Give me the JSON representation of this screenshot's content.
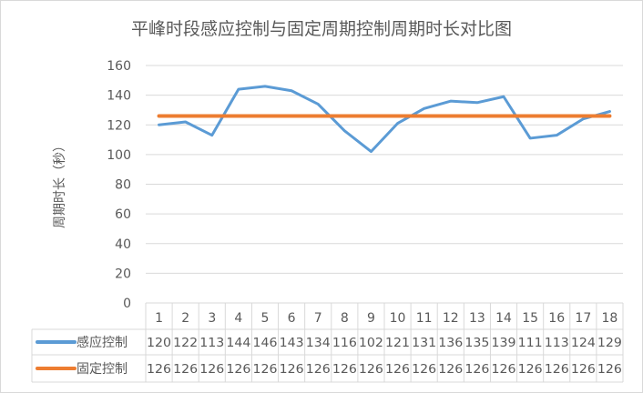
{
  "chart_data": {
    "type": "line",
    "title": "平峰时段感应控制与固定周期控制周期时长对比图",
    "ylabel": "周期时长（秒）",
    "xlabel": "",
    "ylim": [
      0,
      160
    ],
    "yticks": [
      0,
      20,
      40,
      60,
      80,
      100,
      120,
      140,
      160
    ],
    "grid": true,
    "legend": "data-table",
    "categories": [
      "1",
      "2",
      "3",
      "4",
      "5",
      "6",
      "7",
      "8",
      "9",
      "10",
      "11",
      "12",
      "13",
      "14",
      "15",
      "16",
      "17",
      "18"
    ],
    "series": [
      {
        "name": "感应控制",
        "color": "#5b9bd5",
        "values": [
          120,
          122,
          113,
          144,
          146,
          143,
          134,
          116,
          102,
          121,
          131,
          136,
          135,
          139,
          111,
          113,
          124,
          129
        ]
      },
      {
        "name": "固定控制",
        "color": "#ed7d31",
        "values": [
          126,
          126,
          126,
          126,
          126,
          126,
          126,
          126,
          126,
          126,
          126,
          126,
          126,
          126,
          126,
          126,
          126,
          126
        ]
      }
    ]
  }
}
